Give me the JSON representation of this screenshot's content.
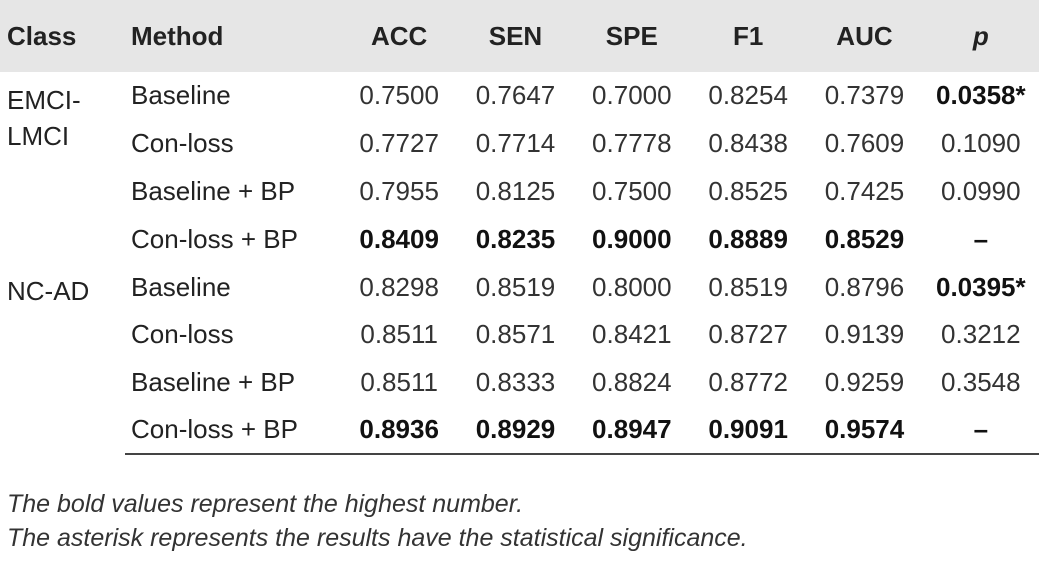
{
  "table": {
    "headers": {
      "class": "Class",
      "method": "Method",
      "acc": "ACC",
      "sen": "SEN",
      "spe": "SPE",
      "f1": "F1",
      "auc": "AUC",
      "p": "p"
    },
    "groups": [
      {
        "class_line1": "EMCI-",
        "class_line2": "LMCI",
        "rows": [
          {
            "method": "Baseline",
            "acc": "0.7500",
            "sen": "0.7647",
            "spe": "0.7000",
            "f1": "0.8254",
            "auc": "0.7379",
            "p": "0.0358*"
          },
          {
            "method": "Con-loss",
            "acc": "0.7727",
            "sen": "0.7714",
            "spe": "0.7778",
            "f1": "0.8438",
            "auc": "0.7609",
            "p": "0.1090"
          },
          {
            "method": "Baseline + BP",
            "acc": "0.7955",
            "sen": "0.8125",
            "spe": "0.7500",
            "f1": "0.8525",
            "auc": "0.7425",
            "p": "0.0990"
          },
          {
            "method": "Con-loss + BP",
            "acc": "0.8409",
            "sen": "0.8235",
            "spe": "0.9000",
            "f1": "0.8889",
            "auc": "0.8529",
            "p": "–"
          }
        ]
      },
      {
        "class_line1": "NC-AD",
        "class_line2": "",
        "rows": [
          {
            "method": "Baseline",
            "acc": "0.8298",
            "sen": "0.8519",
            "spe": "0.8000",
            "f1": "0.8519",
            "auc": "0.8796",
            "p": "0.0395*"
          },
          {
            "method": "Con-loss",
            "acc": "0.8511",
            "sen": "0.8571",
            "spe": "0.8421",
            "f1": "0.8727",
            "auc": "0.9139",
            "p": "0.3212"
          },
          {
            "method": "Baseline + BP",
            "acc": "0.8511",
            "sen": "0.8333",
            "spe": "0.8824",
            "f1": "0.8772",
            "auc": "0.9259",
            "p": "0.3548"
          },
          {
            "method": "Con-loss + BP",
            "acc": "0.8936",
            "sen": "0.8929",
            "spe": "0.8947",
            "f1": "0.9091",
            "auc": "0.9574",
            "p": "–"
          }
        ]
      }
    ]
  },
  "notes": {
    "line1": "The bold values represent the highest number.",
    "line2": "The asterisk represents the results have the statistical significance."
  }
}
